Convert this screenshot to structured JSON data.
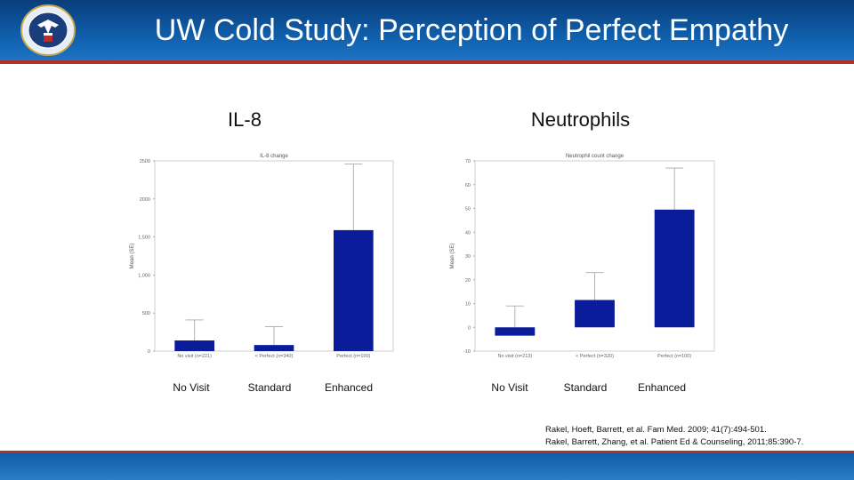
{
  "slide": {
    "title": "UW Cold Study: Perception of Perfect Empathy",
    "logo": "va-seal-icon",
    "colors": {
      "header": "#0f5ca8",
      "accent_rule": "#b0302e",
      "bar": "#0a1c99"
    }
  },
  "charts": [
    {
      "heading": "IL-8",
      "categories": [
        "No Visit",
        "Standard",
        "Enhanced"
      ]
    },
    {
      "heading": "Neutrophils",
      "categories": [
        "No Visit",
        "Standard",
        "Enhanced"
      ]
    }
  ],
  "chart_data": [
    {
      "type": "bar",
      "title": "IL-8 change",
      "ylabel": "Mean (SE)",
      "categories": [
        "No visit (n=221)",
        "< Perfect (n=340)",
        "Perfect (n=100)"
      ],
      "values": [
        140,
        80,
        1590
      ],
      "error_upper": [
        410,
        320,
        2460
      ],
      "ylim": [
        0,
        2500
      ],
      "yticks": [
        0,
        500,
        1000,
        1500,
        2000,
        2500
      ],
      "yticklabels": [
        "0",
        "500",
        "1,000",
        "1,500",
        "2000",
        "2500"
      ],
      "grid": false
    },
    {
      "type": "bar",
      "title": "Neutrophil count change",
      "ylabel": "Mean (SE)",
      "categories": [
        "No visit (n=213)",
        "< Perfect (n=320)",
        "Perfect (n=100)"
      ],
      "values": [
        -3.5,
        11.5,
        49.5
      ],
      "error_upper": [
        9,
        23,
        67
      ],
      "ylim": [
        -10,
        70
      ],
      "yticks": [
        -10,
        0,
        10,
        20,
        30,
        40,
        50,
        60,
        70
      ],
      "yticklabels": [
        "-10",
        "0",
        "10",
        "20",
        "30",
        "40",
        "50",
        "60",
        "70"
      ],
      "grid": false
    }
  ],
  "citations": [
    "Rakel, Hoeft, Barrett, et al. Fam Med. 2009; 41(7):494-501.",
    "Rakel, Barrett, Zhang, et al. Patient Ed & Counseling, 2011;85:390-7."
  ]
}
